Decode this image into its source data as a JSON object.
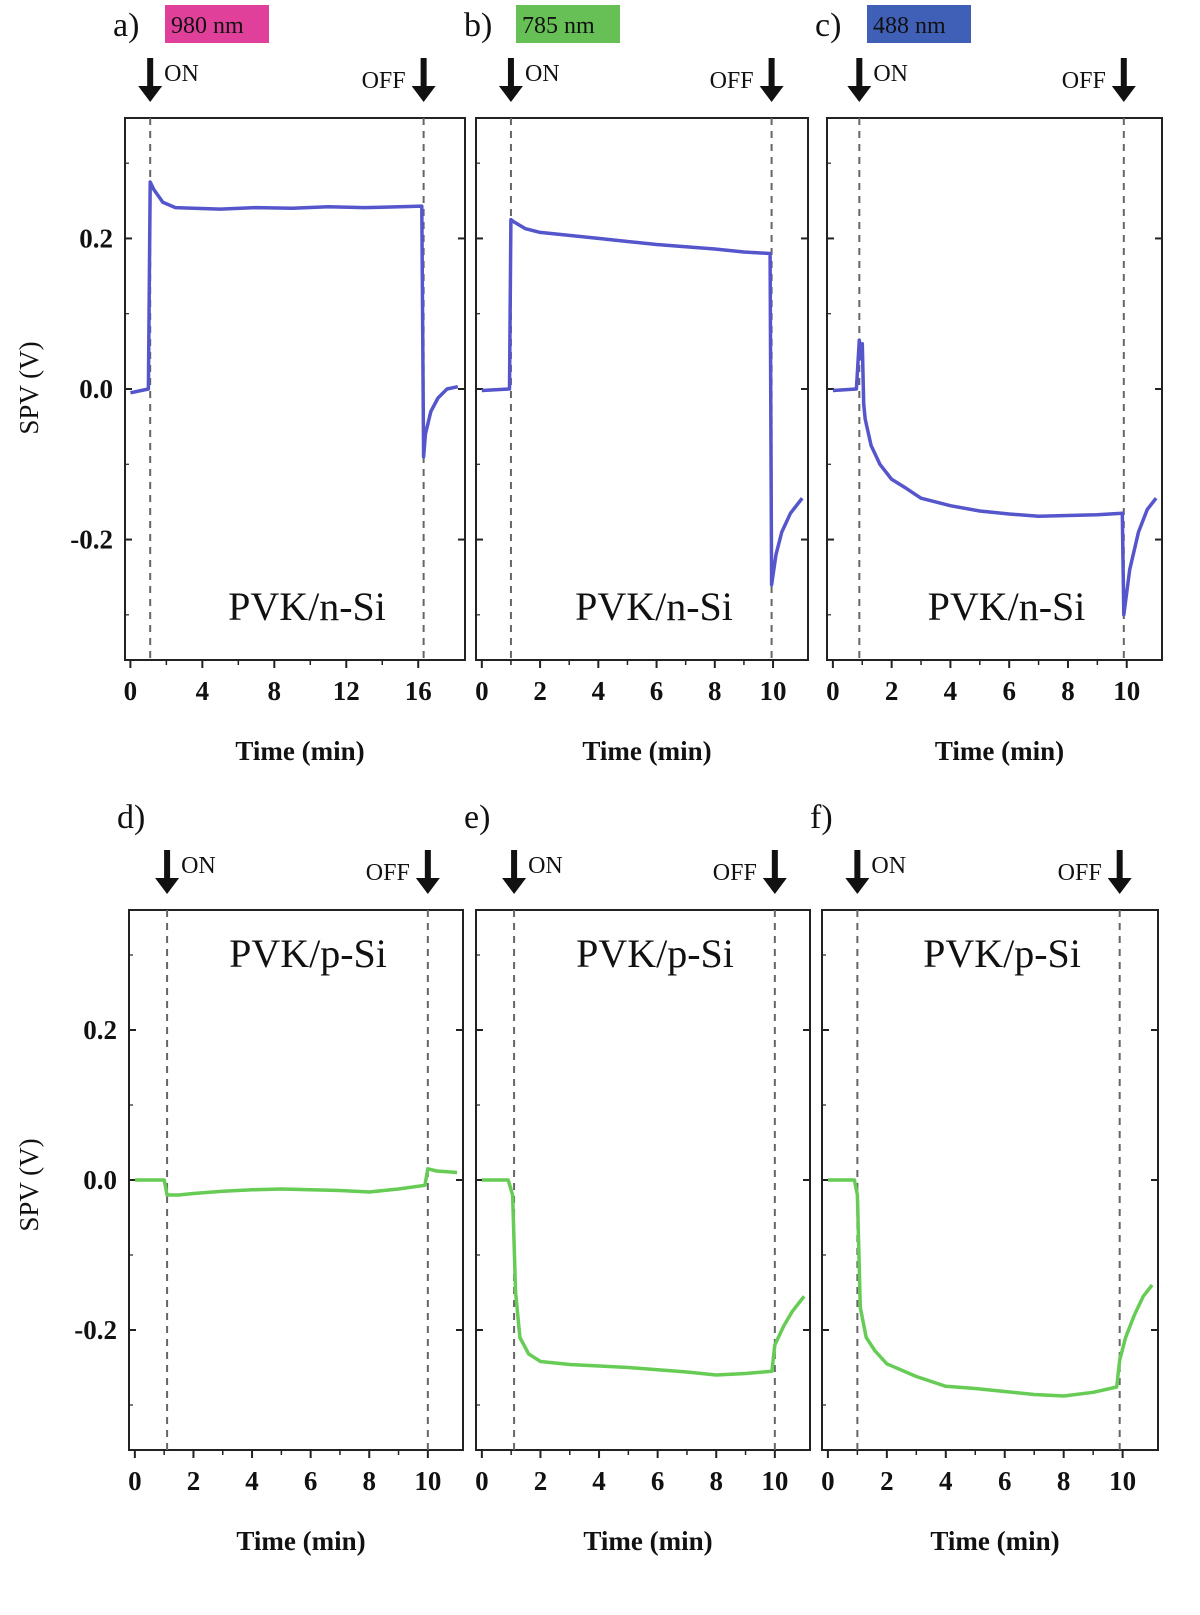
{
  "figure": {
    "y_axis_label": "SPV (V)",
    "x_axis_label": "Time (min)",
    "on_label": "ON",
    "off_label": "OFF"
  },
  "chart_data": [
    {
      "panel": "a)",
      "type": "line",
      "wavelength": "980 nm",
      "wavelength_color": "#e0409a",
      "sample": "PVK/n-Si",
      "sample_position": "bottom",
      "series_color": "#5555cc",
      "xlabel": "Time (min)",
      "ylabel": "SPV (V)",
      "xlim": [
        -0.3,
        18.6
      ],
      "ylim": [
        -0.36,
        0.36
      ],
      "xticks": [
        0,
        4,
        8,
        12,
        16
      ],
      "yticks": [
        -0.2,
        0.0,
        0.2
      ],
      "on_time": 1.1,
      "off_time": 16.3,
      "series": [
        {
          "x": [
            0,
            1.0,
            1.1,
            1.3,
            1.8,
            2.5,
            3.5,
            5,
            7,
            9,
            11,
            13,
            15,
            16.2,
            16.3,
            16.4,
            16.7,
            17.1,
            17.6,
            18.2
          ],
          "y": [
            -0.005,
            0.0,
            0.275,
            0.265,
            0.248,
            0.241,
            0.24,
            0.239,
            0.241,
            0.24,
            0.242,
            0.241,
            0.242,
            0.243,
            -0.09,
            -0.06,
            -0.03,
            -0.012,
            0.0,
            0.003
          ]
        }
      ]
    },
    {
      "panel": "b)",
      "type": "line",
      "wavelength": "785 nm",
      "wavelength_color": "#66c055",
      "sample": "PVK/n-Si",
      "sample_position": "bottom",
      "series_color": "#5555cc",
      "xlabel": "Time (min)",
      "ylabel": "SPV (V)",
      "xlim": [
        -0.2,
        11.2
      ],
      "ylim": [
        -0.36,
        0.36
      ],
      "xticks": [
        0,
        2,
        4,
        6,
        8,
        10
      ],
      "yticks": [
        -0.2,
        0.0,
        0.2
      ],
      "on_time": 1.0,
      "off_time": 9.95,
      "series": [
        {
          "x": [
            0,
            0.95,
            1.0,
            1.1,
            1.5,
            2,
            3,
            4,
            5,
            6,
            7,
            8,
            9,
            9.9,
            9.95,
            10.1,
            10.3,
            10.6,
            11.0
          ],
          "y": [
            -0.002,
            0.0,
            0.225,
            0.222,
            0.213,
            0.208,
            0.204,
            0.2,
            0.196,
            0.192,
            0.189,
            0.186,
            0.182,
            0.18,
            -0.26,
            -0.22,
            -0.19,
            -0.165,
            -0.145
          ]
        }
      ]
    },
    {
      "panel": "c)",
      "type": "line",
      "wavelength": "488 nm",
      "wavelength_color": "#4060b8",
      "sample": "PVK/n-Si",
      "sample_position": "bottom",
      "series_color": "#5555cc",
      "xlabel": "Time (min)",
      "ylabel": "SPV (V)",
      "xlim": [
        -0.2,
        11.2
      ],
      "ylim": [
        -0.36,
        0.36
      ],
      "xticks": [
        0,
        2,
        4,
        6,
        8,
        10
      ],
      "yticks": [
        -0.2,
        0.0,
        0.2
      ],
      "on_time": 0.9,
      "off_time": 9.9,
      "series": [
        {
          "x": [
            0,
            0.8,
            0.9,
            0.95,
            1.0,
            1.05,
            1.1,
            1.3,
            1.6,
            2.0,
            2.5,
            3,
            4,
            5,
            6,
            7,
            8,
            9,
            9.85,
            9.9,
            10.1,
            10.4,
            10.7,
            11.0
          ],
          "y": [
            -0.002,
            0.0,
            0.065,
            0.04,
            0.06,
            -0.02,
            -0.04,
            -0.075,
            -0.1,
            -0.12,
            -0.132,
            -0.145,
            -0.155,
            -0.162,
            -0.166,
            -0.169,
            -0.168,
            -0.167,
            -0.165,
            -0.3,
            -0.24,
            -0.19,
            -0.16,
            -0.145
          ]
        }
      ]
    },
    {
      "panel": "d)",
      "type": "line",
      "wavelength": "",
      "wavelength_color": "",
      "sample": "PVK/p-Si",
      "sample_position": "top",
      "series_color": "#66cc55",
      "xlabel": "Time (min)",
      "ylabel": "SPV (V)",
      "xlim": [
        -0.2,
        11.2
      ],
      "ylim": [
        -0.36,
        0.36
      ],
      "xticks": [
        0,
        2,
        4,
        6,
        8,
        10
      ],
      "yticks": [
        -0.2,
        0.0,
        0.2
      ],
      "on_time": 1.1,
      "off_time": 10.0,
      "series": [
        {
          "x": [
            0,
            1.0,
            1.1,
            1.5,
            2,
            3,
            4,
            5,
            6,
            7,
            8,
            9,
            9.9,
            10.0,
            10.3,
            11.0
          ],
          "y": [
            0.0,
            0.0,
            -0.02,
            -0.02,
            -0.018,
            -0.015,
            -0.013,
            -0.012,
            -0.013,
            -0.014,
            -0.016,
            -0.012,
            -0.007,
            0.015,
            0.012,
            0.01
          ]
        }
      ]
    },
    {
      "panel": "e)",
      "type": "line",
      "wavelength": "",
      "wavelength_color": "",
      "sample": "PVK/p-Si",
      "sample_position": "top",
      "series_color": "#66cc55",
      "xlabel": "Time (min)",
      "ylabel": "SPV (V)",
      "xlim": [
        -0.2,
        11.2
      ],
      "ylim": [
        -0.36,
        0.36
      ],
      "xticks": [
        0,
        2,
        4,
        6,
        8,
        10
      ],
      "yticks": [
        -0.2,
        0.0,
        0.2
      ],
      "on_time": 1.1,
      "off_time": 10.0,
      "series": [
        {
          "x": [
            0,
            0.9,
            1.05,
            1.15,
            1.3,
            1.6,
            2,
            3,
            4,
            5,
            6,
            7,
            8,
            9,
            9.9,
            10.0,
            10.3,
            10.6,
            11.0
          ],
          "y": [
            0.0,
            0.0,
            -0.02,
            -0.15,
            -0.21,
            -0.232,
            -0.242,
            -0.246,
            -0.248,
            -0.25,
            -0.253,
            -0.256,
            -0.26,
            -0.258,
            -0.255,
            -0.22,
            -0.195,
            -0.175,
            -0.155
          ]
        }
      ]
    },
    {
      "panel": "f)",
      "type": "line",
      "wavelength": "",
      "wavelength_color": "",
      "sample": "PVK/p-Si",
      "sample_position": "top",
      "series_color": "#66cc55",
      "xlabel": "Time (min)",
      "ylabel": "SPV (V)",
      "xlim": [
        -0.2,
        11.2
      ],
      "ylim": [
        -0.36,
        0.36
      ],
      "xticks": [
        0,
        2,
        4,
        6,
        8,
        10
      ],
      "yticks": [
        -0.2,
        0.0,
        0.2
      ],
      "on_time": 1.0,
      "off_time": 9.9,
      "series": [
        {
          "x": [
            0,
            0.9,
            1.0,
            1.1,
            1.3,
            1.6,
            2,
            3,
            4,
            5,
            6,
            7,
            8,
            9,
            9.8,
            9.9,
            10.1,
            10.4,
            10.7,
            11.0
          ],
          "y": [
            0.0,
            0.0,
            -0.02,
            -0.17,
            -0.21,
            -0.228,
            -0.245,
            -0.262,
            -0.275,
            -0.278,
            -0.282,
            -0.286,
            -0.288,
            -0.283,
            -0.276,
            -0.24,
            -0.21,
            -0.18,
            -0.155,
            -0.14
          ]
        }
      ]
    }
  ]
}
